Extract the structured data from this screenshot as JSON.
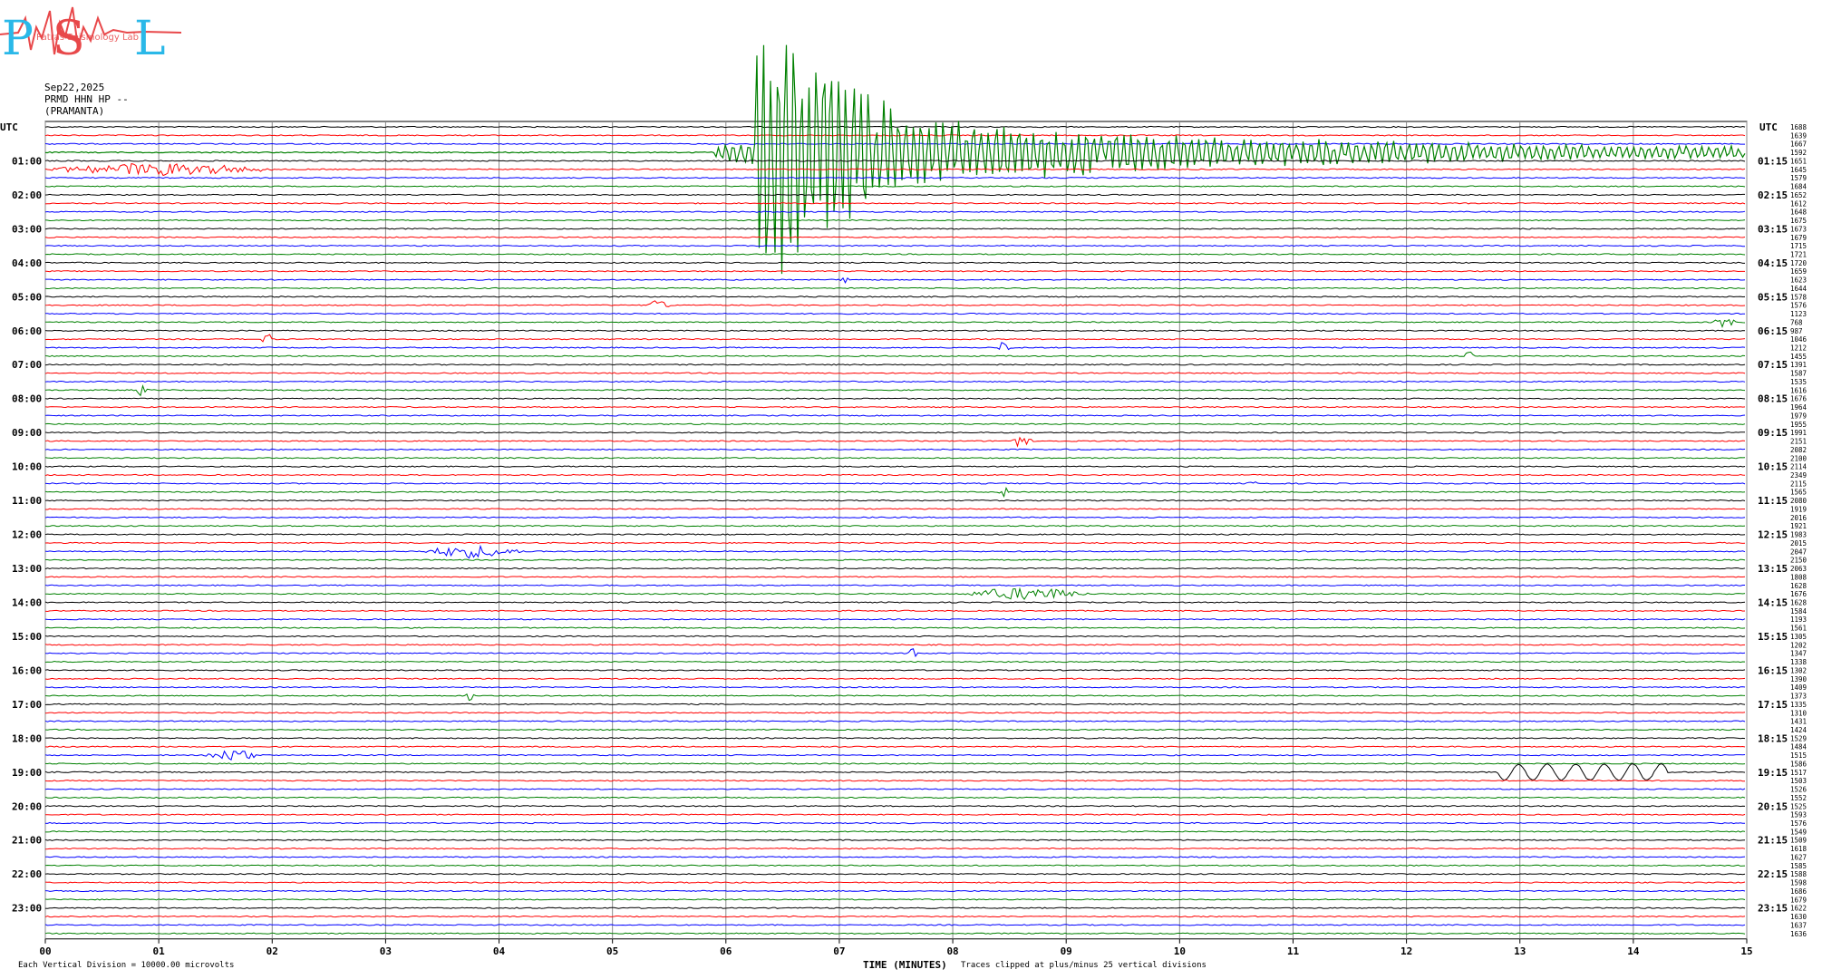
{
  "logo": {
    "letters": "PSL",
    "tagline": "Patras Seismology Lab",
    "colors": {
      "P": "#2ab8e8",
      "S": "#e8484a",
      "L": "#2ab8e8"
    }
  },
  "header": {
    "date": "Sep22,2025",
    "station": "PRMD HHN HP --",
    "location": "(PRAMANTA)"
  },
  "footer": {
    "left_note": "Each Vertical Division = 10000.00 microvolts",
    "xlabel": "TIME (MINUTES)",
    "clip_note": "Traces clipped at plus/minus 25 vertical divisions"
  },
  "chart_data": {
    "type": "line",
    "title": "",
    "xlabel": "TIME (MINUTES)",
    "xlim": [
      0,
      15
    ],
    "x_ticks": [
      "00",
      "01",
      "02",
      "03",
      "04",
      "05",
      "06",
      "07",
      "08",
      "09",
      "10",
      "11",
      "12",
      "13",
      "14",
      "15"
    ],
    "left_axis_label": "UTC",
    "right_axis_label": "UTC",
    "left_hour_labels": [
      "01:00",
      "02:00",
      "03:00",
      "04:00",
      "05:00",
      "06:00",
      "07:00",
      "08:00",
      "09:00",
      "10:00",
      "11:00",
      "12:00",
      "13:00",
      "14:00",
      "15:00",
      "16:00",
      "17:00",
      "18:00",
      "19:00",
      "20:00",
      "21:00",
      "22:00",
      "23:00"
    ],
    "right_hour_labels": [
      "01:15",
      "02:15",
      "03:15",
      "04:15",
      "05:15",
      "06:15",
      "07:15",
      "08:15",
      "09:15",
      "10:15",
      "11:15",
      "12:15",
      "13:15",
      "14:15",
      "15:15",
      "16:15",
      "17:15",
      "18:15",
      "19:15",
      "20:15",
      "21:15",
      "22:15",
      "23:15"
    ],
    "trace_colors": [
      "#000000",
      "#ff0000",
      "#0000ff",
      "#008000"
    ],
    "traces_per_hour": 4,
    "minutes_per_trace": 15,
    "right_trace_values": [
      "1688",
      "1639",
      "1667",
      "1592",
      "1651",
      "1645",
      "1579",
      "1684",
      "1652",
      "1612",
      "1648",
      "1675",
      "1673",
      "1679",
      "1715",
      "1721",
      "1720",
      "1659",
      "1623",
      "1644",
      "1578",
      "1576",
      "1123",
      "768",
      "987",
      "1046",
      "1212",
      "1455",
      "1391",
      "1587",
      "1535",
      "1616",
      "1676",
      "1964",
      "1979",
      "1955",
      "1991",
      "2151",
      "2082",
      "2100",
      "2114",
      "2349",
      "2115",
      "1565",
      "2080",
      "1919",
      "2016",
      "1921",
      "1983",
      "2015",
      "2047",
      "2150",
      "2063",
      "1808",
      "1628",
      "1676",
      "1628",
      "1584",
      "1193",
      "1561",
      "1305",
      "1202",
      "1347",
      "1338",
      "1302",
      "1390",
      "1409",
      "1373",
      "1335",
      "1310",
      "1431",
      "1424",
      "1529",
      "1484",
      "1515",
      "1586",
      "1517",
      "1503",
      "1526",
      "1552",
      "1525",
      "1593",
      "1576",
      "1549",
      "1509",
      "1618",
      "1627",
      "1585",
      "1588",
      "1598",
      "1686",
      "1679",
      "1622",
      "1630",
      "1637",
      "1636"
    ],
    "events": [
      {
        "trace": 3,
        "start_min": 5.9,
        "end_min": 15.0,
        "color": "#ff0000",
        "note": "large earthquake, clipped at plus/minus 25 divisions"
      },
      {
        "trace": 5,
        "start_min": 0.0,
        "end_min": 2.0,
        "color": "#0000ff"
      },
      {
        "trace": 18,
        "start_min": 7.0,
        "end_min": 7.1,
        "color": "#ff0000"
      },
      {
        "trace": 21,
        "start_min": 5.3,
        "end_min": 5.5,
        "color": "#000000"
      },
      {
        "trace": 23,
        "start_min": 14.7,
        "end_min": 14.9,
        "color": "#0000ff"
      },
      {
        "trace": 25,
        "start_min": 1.9,
        "end_min": 2.0,
        "color": "#ff0000"
      },
      {
        "trace": 26,
        "start_min": 8.4,
        "end_min": 8.5,
        "color": "#0000ff"
      },
      {
        "trace": 27,
        "start_min": 12.5,
        "end_min": 12.6,
        "color": "#008000"
      },
      {
        "trace": 31,
        "start_min": 0.8,
        "end_min": 0.9,
        "color": "#008000"
      },
      {
        "trace": 37,
        "start_min": 8.5,
        "end_min": 8.7,
        "color": "#000000"
      },
      {
        "trace": 42,
        "start_min": 10.6,
        "end_min": 10.7,
        "color": "#0000ff"
      },
      {
        "trace": 43,
        "start_min": 8.4,
        "end_min": 8.5,
        "color": "#008000"
      },
      {
        "trace": 50,
        "start_min": 3.3,
        "end_min": 4.2,
        "color": "#ff0000"
      },
      {
        "trace": 55,
        "start_min": 8.1,
        "end_min": 9.2,
        "color": "#008000",
        "note": "local event"
      },
      {
        "trace": 62,
        "start_min": 7.6,
        "end_min": 7.7,
        "color": "#ff0000"
      },
      {
        "trace": 67,
        "start_min": 3.7,
        "end_min": 3.8,
        "color": "#008000"
      },
      {
        "trace": 74,
        "start_min": 1.4,
        "end_min": 1.9,
        "color": "#0000ff"
      },
      {
        "trace": 76,
        "start_min": 12.8,
        "end_min": 14.3,
        "color": "#000000",
        "note": "long-period waves"
      }
    ]
  }
}
